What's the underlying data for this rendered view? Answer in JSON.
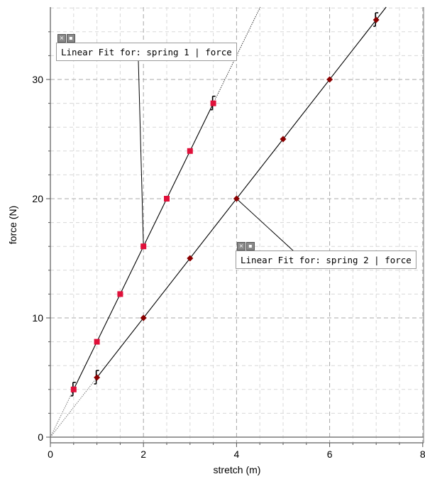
{
  "chart_data": {
    "type": "scatter",
    "title": "",
    "xlabel": "stretch (m)",
    "ylabel": "force (N)",
    "xlim": [
      0,
      8
    ],
    "ylim": [
      -0.5,
      36
    ],
    "x_ticks": [
      0,
      2,
      4,
      6,
      8
    ],
    "y_ticks": [
      0,
      10,
      20,
      30
    ],
    "grid": true,
    "series": [
      {
        "x": [
          0.5,
          1,
          1.5,
          2,
          2.5,
          3,
          3.5
        ],
        "y": [
          4,
          8,
          12,
          16,
          20,
          24,
          28
        ],
        "marker": "square",
        "color": "#e0103a",
        "fit_slope": 8,
        "fit_intercept": 0
      },
      {
        "x": [
          1,
          2,
          3,
          4,
          5,
          6,
          7
        ],
        "y": [
          5,
          10,
          15,
          20,
          25,
          30,
          35
        ],
        "marker": "diamond",
        "color": "#8b0000",
        "fit_slope": 5,
        "fit_intercept": 0
      }
    ],
    "error_bars_at": [
      {
        "series": 0,
        "x": 0.5,
        "y": 4
      },
      {
        "series": 0,
        "x": 3.5,
        "y": 28
      },
      {
        "series": 1,
        "x": 1,
        "y": 5
      },
      {
        "series": 1,
        "x": 7,
        "y": 35
      }
    ],
    "annotations": [
      {
        "text": "Linear Fit for: spring 1 | force",
        "points_to": [
          2,
          16
        ]
      },
      {
        "text": "Linear Fit for: spring 2 | force",
        "points_to": [
          4,
          20
        ]
      }
    ]
  },
  "fit_box_icons": [
    "close-icon",
    "options-icon"
  ]
}
